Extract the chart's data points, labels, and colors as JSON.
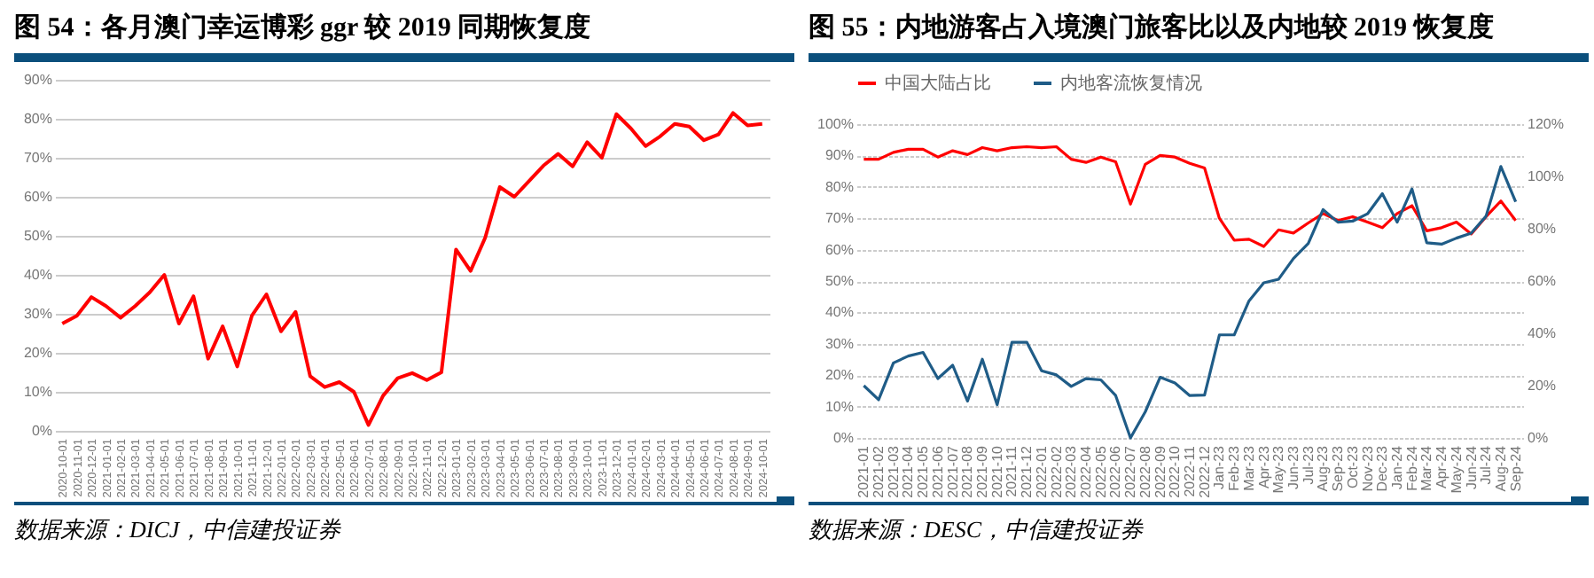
{
  "chart_data": [
    {
      "type": "line",
      "title": "图 54：各月澳门幸运博彩 ggr 较 2019 同期恢复度",
      "annotations": [
        "数据来源：DICJ，中信建投证券"
      ],
      "categories": [
        "2020-10-01",
        "2020-11-01",
        "2020-12-01",
        "2021-01-01",
        "2021-02-01",
        "2021-03-01",
        "2021-04-01",
        "2021-05-01",
        "2021-06-01",
        "2021-07-01",
        "2021-08-01",
        "2021-09-01",
        "2021-10-01",
        "2021-11-01",
        "2021-12-01",
        "2022-01-01",
        "2022-02-01",
        "2022-03-01",
        "2022-04-01",
        "2022-05-01",
        "2022-06-01",
        "2022-07-01",
        "2022-08-01",
        "2022-09-01",
        "2022-10-01",
        "2022-11-01",
        "2022-12-01",
        "2023-01-01",
        "2023-02-01",
        "2023-03-01",
        "2023-04-01",
        "2023-05-01",
        "2023-06-01",
        "2023-07-01",
        "2023-08-01",
        "2023-09-01",
        "2023-10-01",
        "2023-11-01",
        "2023-12-01",
        "2024-01-01",
        "2024-02-01",
        "2024-03-01",
        "2024-04-01",
        "2024-05-01",
        "2024-06-01",
        "2024-07-01",
        "2024-08-01",
        "2024-09-01",
        "2024-10-01"
      ],
      "values": [
        27.5,
        29.5,
        34.3,
        32,
        29,
        32,
        35.5,
        40,
        27.5,
        34.5,
        18.5,
        26.8,
        16.5,
        29.5,
        35,
        25.5,
        30.5,
        14,
        11.2,
        12.5,
        10,
        1.5,
        9,
        13.5,
        14.8,
        13,
        15,
        46.5,
        41,
        49.5,
        62.5,
        60,
        64,
        68,
        71,
        67.8,
        74,
        70,
        81.2,
        77.5,
        73,
        75.5,
        78.7,
        78,
        74.5,
        76,
        81.5,
        78.3,
        78.7
      ],
      "color": "#ff0000",
      "ylim": [
        0,
        90
      ],
      "yticks": [
        {
          "value": 0,
          "label": "0%"
        },
        {
          "value": 10,
          "label": "10%"
        },
        {
          "value": 20,
          "label": "20%"
        },
        {
          "value": 30,
          "label": "30%"
        },
        {
          "value": 40,
          "label": "40%"
        },
        {
          "value": 50,
          "label": "50%"
        },
        {
          "value": 60,
          "label": "60%"
        },
        {
          "value": 70,
          "label": "70%"
        },
        {
          "value": 80,
          "label": "80%"
        },
        {
          "value": 90,
          "label": "90%"
        }
      ],
      "grid": "y"
    },
    {
      "type": "line",
      "title": "图 55：内地游客占入境澳门旅客比以及内地较 2019 恢复度",
      "annotations": [
        "数据来源：DESC，中信建投证券"
      ],
      "categories": [
        "2021-01",
        "2021-02",
        "2021-03",
        "2021-04",
        "2021-05",
        "2021-06",
        "2021-07",
        "2021-08",
        "2021-09",
        "2021-10",
        "2021-11",
        "2021-12",
        "2022-01",
        "2022-02",
        "2022-03",
        "2022-04",
        "2022-05",
        "2022-06",
        "2022-07",
        "2022-08",
        "2022-09",
        "2022-10",
        "2022-11",
        "2022-12",
        "Jan-23",
        "Feb-23",
        "Mar-23",
        "Apr-23",
        "May-23",
        "Jun-23",
        "Jul-23",
        "Aug-23",
        "Sep-23",
        "Oct-23",
        "Nov-23",
        "Dec-23",
        "Jan-24",
        "Feb-24",
        "Mar-24",
        "Apr-24",
        "May-24",
        "Jun-24",
        "Jul-24",
        "Aug-24",
        "Sep-24"
      ],
      "series": [
        {
          "name": "中国大陆占比",
          "color": "#ff0000",
          "values": [
            88.8,
            88.8,
            91,
            92,
            92,
            89.5,
            91.5,
            90.3,
            92.5,
            91.5,
            92.5,
            92.8,
            92.5,
            92.8,
            88.8,
            87.8,
            89.5,
            88,
            74.5,
            87.2,
            90,
            89.5,
            87.5,
            86,
            70,
            63,
            63.3,
            61,
            66.3,
            65.3,
            68.5,
            71.5,
            69.3,
            70.5,
            68.8,
            67,
            71.5,
            74,
            66,
            67,
            68.8,
            65,
            70.5,
            75.5,
            69.3
          ]
        },
        {
          "name": "内地客流恢复情况",
          "color": "#1f5c87",
          "axis": "y2",
          "values": [
            20,
            14.6,
            28.7,
            31.3,
            32.7,
            22.7,
            27.8,
            14.1,
            30.1,
            12.7,
            36.6,
            36.6,
            25.7,
            24.1,
            19.7,
            22.7,
            22.2,
            16.2,
            0,
            10,
            23.2,
            21,
            16.2,
            16.4,
            39.4,
            39.4,
            52.4,
            59.3,
            60.7,
            68.6,
            74.4,
            87.3,
            82.5,
            82.9,
            85.7,
            93.4,
            82.5,
            95.2,
            74.6,
            74.1,
            76.4,
            78.3,
            84.8,
            103.8,
            90.3
          ]
        }
      ],
      "ylim": [
        0,
        100
      ],
      "yticks": [
        {
          "value": 0,
          "label": "0%"
        },
        {
          "value": 10,
          "label": "10%"
        },
        {
          "value": 20,
          "label": "20%"
        },
        {
          "value": 30,
          "label": "30%"
        },
        {
          "value": 40,
          "label": "40%"
        },
        {
          "value": 50,
          "label": "50%"
        },
        {
          "value": 60,
          "label": "60%"
        },
        {
          "value": 70,
          "label": "70%"
        },
        {
          "value": 80,
          "label": "80%"
        },
        {
          "value": 90,
          "label": "90%"
        },
        {
          "value": 100,
          "label": "100%"
        }
      ],
      "y2lim": [
        0,
        120
      ],
      "y2ticks": [
        {
          "value": 0,
          "label": "0%"
        },
        {
          "value": 20,
          "label": "20%"
        },
        {
          "value": 40,
          "label": "40%"
        },
        {
          "value": 60,
          "label": "60%"
        },
        {
          "value": 80,
          "label": "80%"
        },
        {
          "value": 100,
          "label": "100%"
        },
        {
          "value": 120,
          "label": "120%"
        }
      ],
      "grid": "y",
      "legend": "top"
    }
  ]
}
